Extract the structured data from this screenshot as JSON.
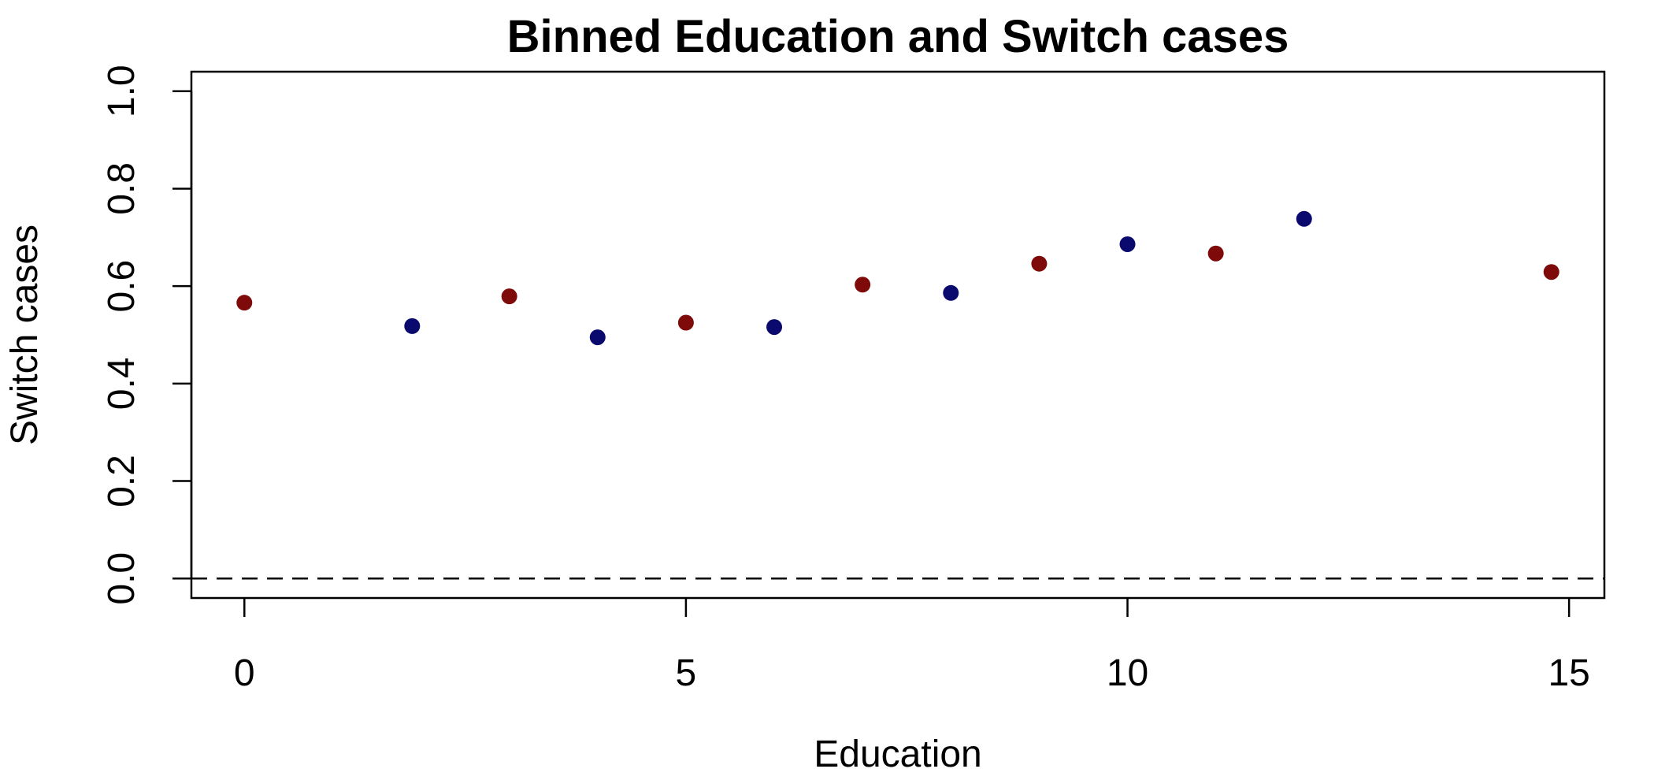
{
  "chart_data": {
    "type": "scatter",
    "title": "Binned Education and Switch cases",
    "xlabel": "Education",
    "ylabel": "Switch cases",
    "xlim": [
      -0.6,
      15.4
    ],
    "ylim": [
      -0.04,
      1.04
    ],
    "x_ticks": [
      0,
      5,
      10,
      15
    ],
    "x_tick_labels": [
      "0",
      "5",
      "10",
      "15"
    ],
    "y_ticks": [
      0.0,
      0.2,
      0.4,
      0.6,
      0.8,
      1.0
    ],
    "y_tick_labels": [
      "0.0",
      "0.2",
      "0.4",
      "0.6",
      "0.8",
      "1.0"
    ],
    "grid": false,
    "reference_line": {
      "y": 0,
      "style": "dashed",
      "color": "#000000"
    },
    "colors": {
      "red": "#7f0a0a",
      "blue": "#0a0a6e"
    },
    "points": [
      {
        "x": 0,
        "y": 0.566,
        "color": "red"
      },
      {
        "x": 1.9,
        "y": 0.518,
        "color": "blue"
      },
      {
        "x": 3,
        "y": 0.579,
        "color": "red"
      },
      {
        "x": 4,
        "y": 0.495,
        "color": "blue"
      },
      {
        "x": 5,
        "y": 0.525,
        "color": "red"
      },
      {
        "x": 6,
        "y": 0.516,
        "color": "blue"
      },
      {
        "x": 7,
        "y": 0.603,
        "color": "red"
      },
      {
        "x": 8,
        "y": 0.586,
        "color": "blue"
      },
      {
        "x": 9,
        "y": 0.646,
        "color": "red"
      },
      {
        "x": 10,
        "y": 0.686,
        "color": "blue"
      },
      {
        "x": 11,
        "y": 0.667,
        "color": "red"
      },
      {
        "x": 12,
        "y": 0.738,
        "color": "blue"
      },
      {
        "x": 14.8,
        "y": 0.629,
        "color": "red"
      }
    ]
  }
}
